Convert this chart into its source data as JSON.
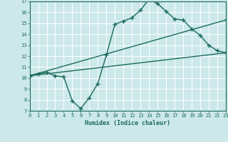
{
  "xlabel": "Humidex (Indice chaleur)",
  "bg_color": "#cce8ea",
  "grid_color": "#b0d8da",
  "line_color": "#1a6b5a",
  "xmin": 0,
  "xmax": 23,
  "ymin": 7,
  "ymax": 17,
  "yticks": [
    7,
    8,
    9,
    10,
    11,
    12,
    13,
    14,
    15,
    16,
    17
  ],
  "xticks": [
    0,
    1,
    2,
    3,
    4,
    5,
    6,
    7,
    8,
    9,
    10,
    11,
    12,
    13,
    14,
    15,
    16,
    17,
    18,
    19,
    20,
    21,
    22,
    23
  ],
  "line1_x": [
    0,
    1,
    2,
    3,
    4,
    5,
    6,
    7,
    8,
    9,
    10,
    11,
    12,
    13,
    14,
    15,
    16,
    17,
    18,
    19,
    20,
    21,
    22,
    23
  ],
  "line1_y": [
    10.2,
    10.4,
    10.5,
    10.2,
    10.1,
    7.9,
    7.2,
    8.2,
    9.5,
    12.1,
    14.9,
    15.2,
    15.5,
    16.2,
    17.2,
    16.8,
    16.1,
    15.4,
    15.3,
    14.5,
    13.9,
    13.0,
    12.5,
    12.3
  ],
  "line2_x": [
    0,
    23
  ],
  "line2_y": [
    10.2,
    15.3
  ],
  "line3_x": [
    0,
    23
  ],
  "line3_y": [
    10.2,
    12.3
  ],
  "marker_size": 4,
  "line_width": 1.0
}
